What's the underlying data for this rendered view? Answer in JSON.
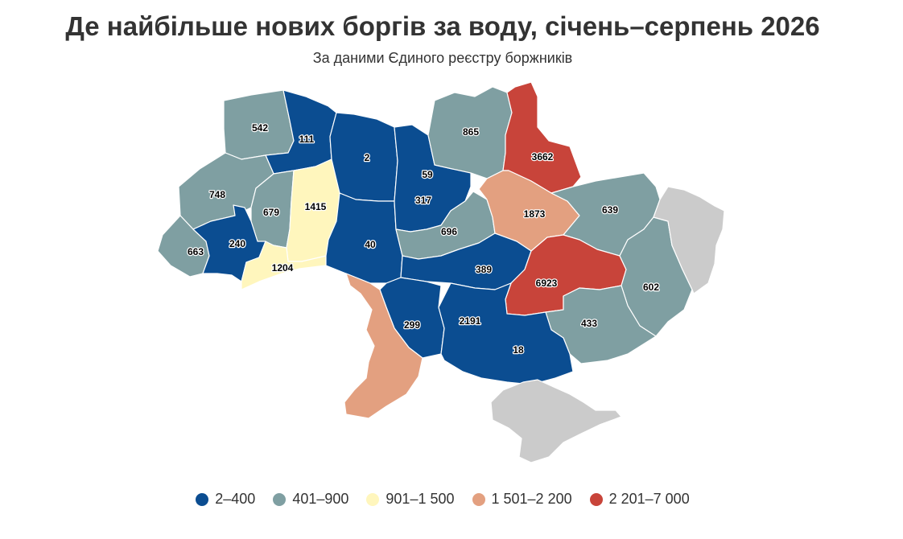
{
  "header": {
    "title": "Де найбільше нових боргів за воду, січень–серпень 2026",
    "subtitle": "За даними Єдиного реєстру боржників"
  },
  "colors": {
    "class_1": "#0b4d91",
    "class_2": "#7f9fa2",
    "class_3": "#fff6bd",
    "class_4": "#e3a080",
    "class_5": "#c8443a",
    "no_data": "#cbcbcb"
  },
  "legend": {
    "items": [
      {
        "label": "2–400",
        "class": "class_1"
      },
      {
        "label": "401–900",
        "class": "class_2"
      },
      {
        "label": "901–1 500",
        "class": "class_3"
      },
      {
        "label": "1 501–2 200",
        "class": "class_4"
      },
      {
        "label": "2 201–7 000",
        "class": "class_5"
      }
    ]
  },
  "regions": [
    {
      "label": "542",
      "value": 542,
      "class": "class_2"
    },
    {
      "label": "111",
      "value": 111,
      "class": "class_1"
    },
    {
      "label": "748",
      "value": 748,
      "class": "class_2"
    },
    {
      "label": "679",
      "value": 679,
      "class": "class_2"
    },
    {
      "label": "1415",
      "value": 1415,
      "class": "class_3"
    },
    {
      "label": "663",
      "value": 663,
      "class": "class_2"
    },
    {
      "label": "240",
      "value": 240,
      "class": "class_1"
    },
    {
      "label": "1204",
      "value": 1204,
      "class": "class_3"
    },
    {
      "label": "2",
      "value": 2,
      "class": "class_1"
    },
    {
      "label": "40",
      "value": 40,
      "class": "class_1"
    },
    {
      "label": "59",
      "value": 59,
      "class": "class_1"
    },
    {
      "label": "317",
      "value": 317,
      "class": "class_1"
    },
    {
      "label": "865",
      "value": 865,
      "class": "class_2"
    },
    {
      "label": "3662",
      "value": 3662,
      "class": "class_5"
    },
    {
      "label": "696",
      "value": 696,
      "class": "class_2"
    },
    {
      "label": "1873",
      "value": 1873,
      "class": "class_4"
    },
    {
      "label": "639",
      "value": 639,
      "class": "class_2"
    },
    {
      "label": "389",
      "value": 389,
      "class": "class_1"
    },
    {
      "label": "6923",
      "value": 6923,
      "class": "class_5"
    },
    {
      "label": "602",
      "value": 602,
      "class": "class_2"
    },
    {
      "label": "299",
      "value": 299,
      "class": "class_1"
    },
    {
      "label": "2191",
      "value": 2191,
      "class": "class_4"
    },
    {
      "label": "433",
      "value": 433,
      "class": "class_2"
    },
    {
      "label": "18",
      "value": 18,
      "class": "class_1"
    },
    {
      "label": "",
      "value": null,
      "class": "no_data"
    },
    {
      "label": "",
      "value": null,
      "class": "no_data"
    }
  ]
}
